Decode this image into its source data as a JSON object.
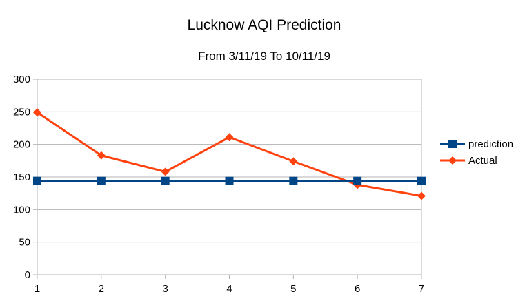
{
  "chart_data": {
    "type": "line",
    "title": "Lucknow AQI Prediction",
    "subtitle": "From 3/11/19 To 10/11/19",
    "x": [
      1,
      2,
      3,
      4,
      5,
      6,
      7
    ],
    "x_tick_labels": [
      "1",
      "2",
      "3",
      "4",
      "5",
      "6",
      "7"
    ],
    "y_tick_labels": [
      "0",
      "50",
      "100",
      "150",
      "200",
      "250",
      "300"
    ],
    "ylim": [
      0,
      300
    ],
    "grid": "horizontal",
    "legend_position": "right",
    "series": [
      {
        "name": "prediction",
        "color": "#004586",
        "marker": "square",
        "values": [
          144,
          144,
          144,
          144,
          144,
          144,
          144
        ]
      },
      {
        "name": "Actual",
        "color": "#ff420e",
        "marker": "diamond",
        "values": [
          249,
          183,
          158,
          211,
          174,
          138,
          121
        ]
      }
    ]
  }
}
